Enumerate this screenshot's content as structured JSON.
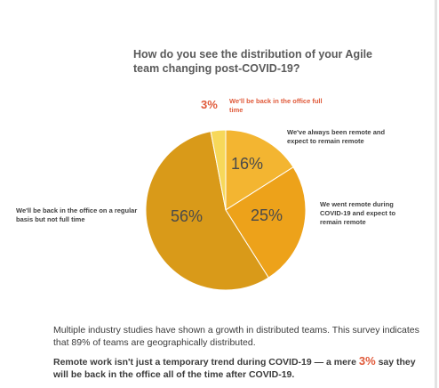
{
  "chart_data": {
    "type": "pie",
    "title": "How do you see the distribution of your Agile team changing post-COVID-19?",
    "slices": [
      {
        "label": "We've always been remote and expect to remain remote",
        "value": 16,
        "display": "16%",
        "color": "#f3b531"
      },
      {
        "label": "We went remote during COVID-19 and expect to remain remote",
        "value": 25,
        "display": "25%",
        "color": "#eda21a"
      },
      {
        "label": "We'll be back in the office on a regular basis but not full time",
        "value": 56,
        "display": "56%",
        "color": "#d99a19"
      },
      {
        "label": "We'll be back in the office full time",
        "value": 3,
        "display": "3%",
        "color": "#f7d85a"
      }
    ]
  },
  "paragraph1": "Multiple industry studies have shown a growth in distributed teams. This survey indicates that 89% of teams are geographically distributed.",
  "paragraph2": {
    "before": "Remote work isn't just a temporary trend during COVID-19 — a mere",
    "highlight": "3%",
    "after": "say they will be back in the office all of the time after COVID-19."
  },
  "colors": {
    "accent": "#e05a3a",
    "text": "#4a4a4a"
  }
}
